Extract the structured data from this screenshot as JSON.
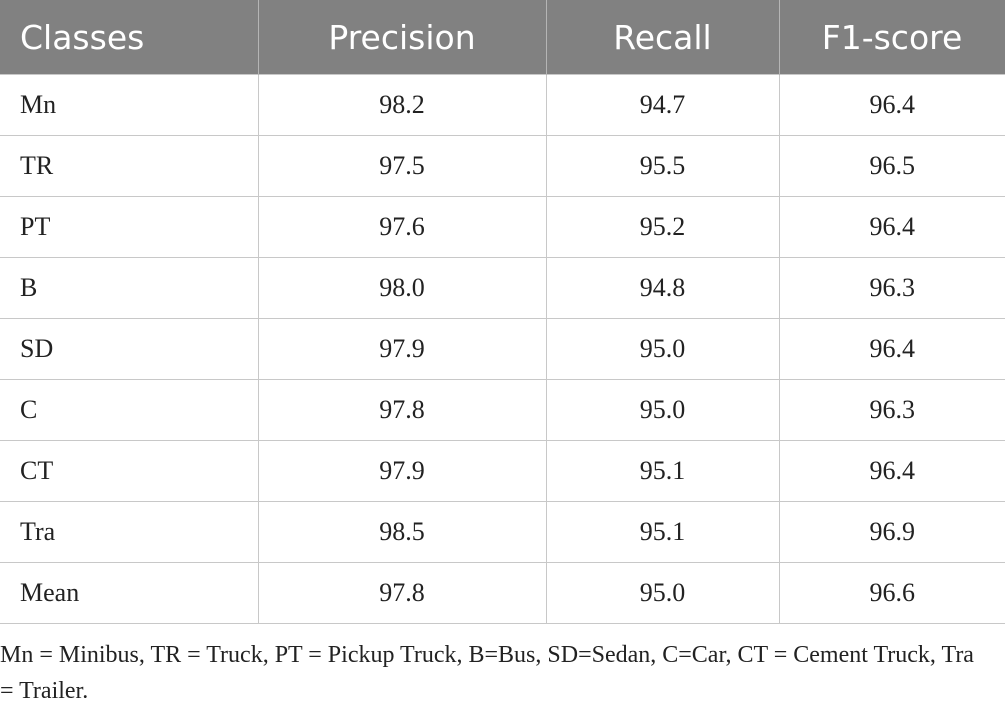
{
  "table": {
    "header": [
      "Classes",
      "Precision",
      "Recall",
      "F1-score"
    ],
    "rows": [
      [
        "Mn",
        "98.2",
        "94.7",
        "96.4"
      ],
      [
        "TR",
        "97.5",
        "95.5",
        "96.5"
      ],
      [
        "PT",
        "97.6",
        "95.2",
        "96.4"
      ],
      [
        "B",
        "98.0",
        "94.8",
        "96.3"
      ],
      [
        "SD",
        "97.9",
        "95.0",
        "96.4"
      ],
      [
        "C",
        "97.8",
        "95.0",
        "96.3"
      ],
      [
        "CT",
        "97.9",
        "95.1",
        "96.4"
      ],
      [
        "Tra",
        "98.5",
        "95.1",
        "96.9"
      ],
      [
        "Mean",
        "97.8",
        "95.0",
        "96.6"
      ]
    ]
  },
  "footnote": "Mn = Minibus, TR = Truck, PT = Pickup Truck, B=Bus, SD=Sedan, C=Car, CT = Cement Truck, Tra = Trailer."
}
